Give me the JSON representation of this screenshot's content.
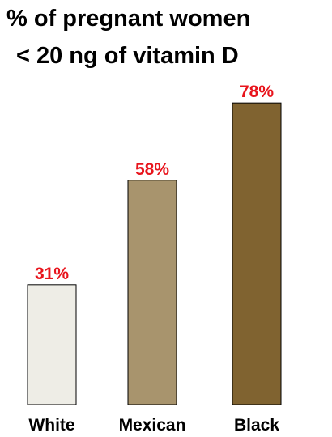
{
  "chart_data": {
    "type": "bar",
    "title": [
      "% of pregnant women",
      "< 20 ng of vitamin D"
    ],
    "categories": [
      "White",
      "Mexican",
      "Black"
    ],
    "values": [
      31,
      58,
      78
    ],
    "data_labels": [
      "31%",
      "58%",
      "78%"
    ],
    "unit": "%",
    "ylim": [
      0,
      100
    ],
    "grid": false,
    "legend": "none",
    "bar_colors": [
      "#eeede6",
      "#a8946d",
      "#806330"
    ],
    "label_color": "#e8141c",
    "axis_color": "#000000"
  }
}
